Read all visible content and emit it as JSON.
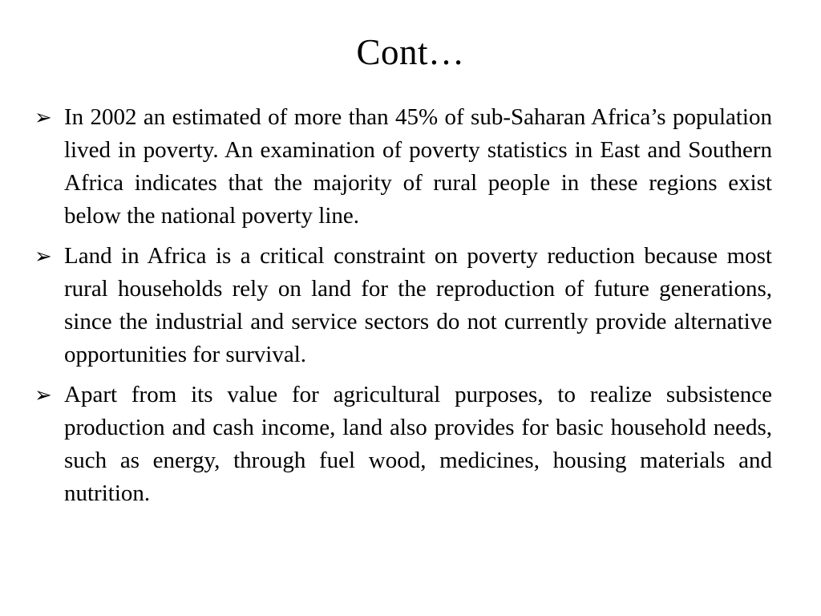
{
  "slide": {
    "title": "Cont…",
    "bullet_glyph": "➢",
    "bullets": [
      {
        "text": "In 2002 an estimated of  more than 45% of sub-Saharan Africa’s population lived in poverty. An examination of poverty statistics in East and Southern Africa indicates that the majority of rural people in these regions exist below the national poverty line."
      },
      {
        "text": "Land in Africa is a critical constraint on poverty reduction because most rural households rely on land for the reproduction of future generations, since the industrial and service sectors do not currently provide alternative opportunities for survival."
      },
      {
        "text": "Apart from its value for agricultural purposes, to realize subsistence production and cash income, land also provides for basic household needs, such as energy, through fuel wood, medicines, housing materials and nutrition."
      }
    ]
  }
}
